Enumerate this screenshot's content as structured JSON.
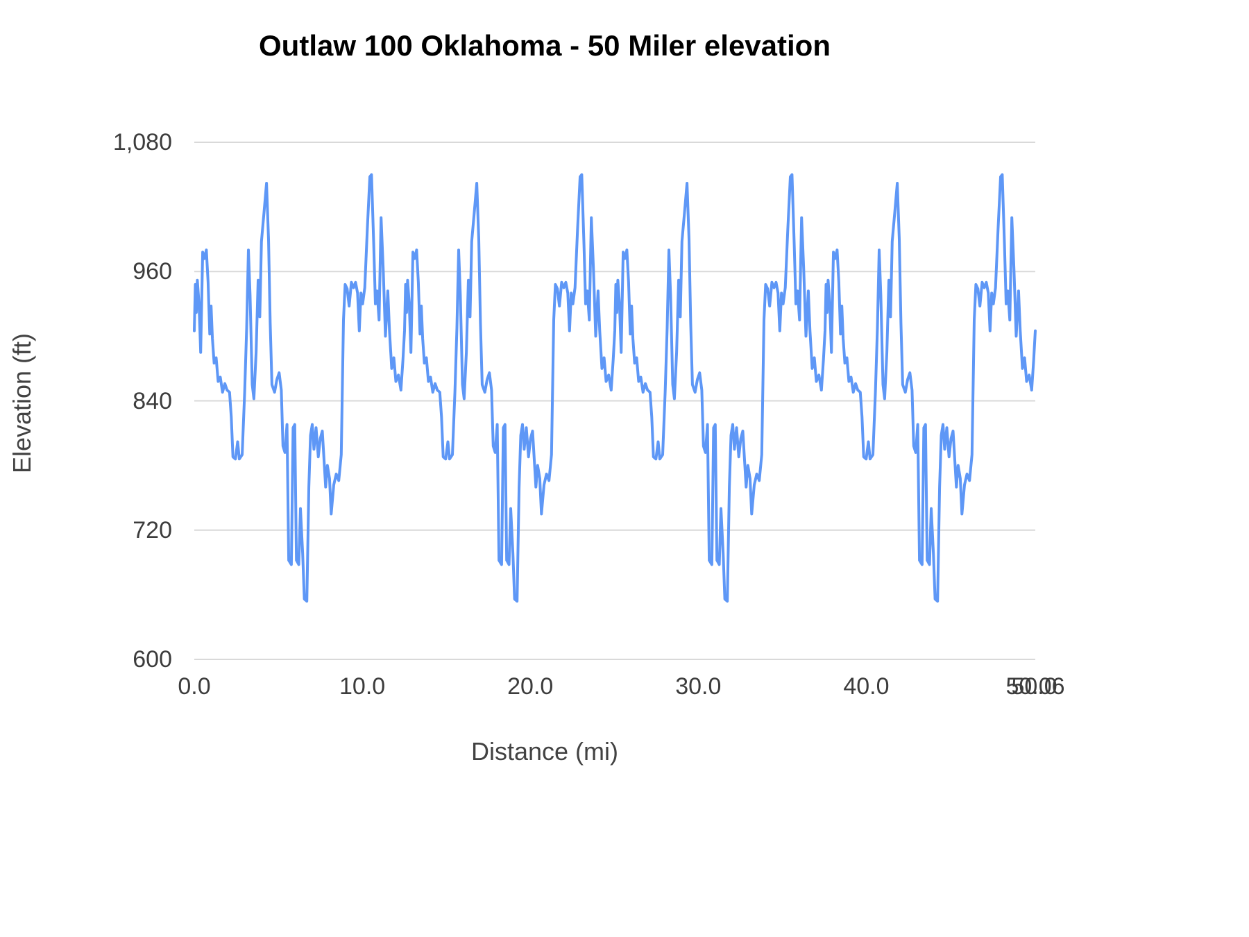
{
  "chart_data": {
    "type": "line",
    "title": "Outlaw 100 Oklahoma - 50 Miler elevation",
    "xlabel": "Distance (mi)",
    "ylabel": "Elevation (ft)",
    "xlim": [
      0,
      50.06
    ],
    "ylim": [
      600,
      1080
    ],
    "grid": "horizontal",
    "legend": "none",
    "series_color": "#5e97f6",
    "gridline_color": "#d9d9d9",
    "y_ticks": [
      {
        "label": "600",
        "value": 600
      },
      {
        "label": "720",
        "value": 720
      },
      {
        "label": "840",
        "value": 840
      },
      {
        "label": "960",
        "value": 960
      },
      {
        "label": "1,080",
        "value": 1080
      }
    ],
    "x_ticks": [
      {
        "label": "0.0",
        "value": 0
      },
      {
        "label": "10.0",
        "value": 10
      },
      {
        "label": "20.0",
        "value": 20
      },
      {
        "label": "30.0",
        "value": 30
      },
      {
        "label": "40.0",
        "value": 40
      },
      {
        "label": "50.0",
        "value": 50
      },
      {
        "label": "50.06",
        "value": 50.06
      }
    ],
    "laps": 4,
    "lap_length_mi": 12.515,
    "total_distance_mi": 50.06,
    "elevation_min_ft": 654,
    "elevation_max_ft": 1050,
    "lap_profile": [
      [
        0.0,
        905
      ],
      [
        0.06,
        948
      ],
      [
        0.12,
        922
      ],
      [
        0.18,
        952
      ],
      [
        0.28,
        930
      ],
      [
        0.38,
        885
      ],
      [
        0.5,
        978
      ],
      [
        0.6,
        972
      ],
      [
        0.72,
        980
      ],
      [
        0.82,
        950
      ],
      [
        0.92,
        902
      ],
      [
        1.0,
        928
      ],
      [
        1.08,
        898
      ],
      [
        1.18,
        875
      ],
      [
        1.3,
        880
      ],
      [
        1.42,
        858
      ],
      [
        1.55,
        862
      ],
      [
        1.68,
        848
      ],
      [
        1.82,
        856
      ],
      [
        1.95,
        850
      ],
      [
        2.1,
        848
      ],
      [
        2.2,
        825
      ],
      [
        2.3,
        788
      ],
      [
        2.45,
        786
      ],
      [
        2.58,
        802
      ],
      [
        2.68,
        786
      ],
      [
        2.85,
        790
      ],
      [
        3.0,
        848
      ],
      [
        3.12,
        908
      ],
      [
        3.22,
        980
      ],
      [
        3.32,
        938
      ],
      [
        3.45,
        855
      ],
      [
        3.55,
        842
      ],
      [
        3.68,
        885
      ],
      [
        3.8,
        952
      ],
      [
        3.9,
        918
      ],
      [
        4.0,
        988
      ],
      [
        4.15,
        1015
      ],
      [
        4.3,
        1042
      ],
      [
        4.42,
        990
      ],
      [
        4.52,
        912
      ],
      [
        4.62,
        855
      ],
      [
        4.78,
        848
      ],
      [
        4.92,
        860
      ],
      [
        5.05,
        866
      ],
      [
        5.18,
        850
      ],
      [
        5.28,
        798
      ],
      [
        5.4,
        792
      ],
      [
        5.52,
        818
      ],
      [
        5.62,
        692
      ],
      [
        5.78,
        688
      ],
      [
        5.88,
        815
      ],
      [
        5.98,
        818
      ],
      [
        6.08,
        692
      ],
      [
        6.22,
        688
      ],
      [
        6.32,
        740
      ],
      [
        6.45,
        698
      ],
      [
        6.55,
        656
      ],
      [
        6.7,
        654
      ],
      [
        6.82,
        760
      ],
      [
        6.92,
        808
      ],
      [
        7.02,
        818
      ],
      [
        7.12,
        795
      ],
      [
        7.25,
        815
      ],
      [
        7.38,
        788
      ],
      [
        7.5,
        805
      ],
      [
        7.62,
        812
      ],
      [
        7.72,
        786
      ],
      [
        7.82,
        760
      ],
      [
        7.92,
        780
      ],
      [
        8.05,
        768
      ],
      [
        8.15,
        735
      ],
      [
        8.3,
        762
      ],
      [
        8.45,
        772
      ],
      [
        8.6,
        766
      ],
      [
        8.75,
        790
      ],
      [
        8.88,
        915
      ],
      [
        8.98,
        948
      ],
      [
        9.1,
        944
      ],
      [
        9.22,
        928
      ],
      [
        9.35,
        950
      ],
      [
        9.48,
        945
      ],
      [
        9.6,
        950
      ],
      [
        9.72,
        940
      ],
      [
        9.82,
        905
      ],
      [
        9.92,
        940
      ],
      [
        10.02,
        930
      ],
      [
        10.15,
        945
      ],
      [
        10.3,
        1000
      ],
      [
        10.45,
        1048
      ],
      [
        10.55,
        1050
      ],
      [
        10.68,
        985
      ],
      [
        10.78,
        930
      ],
      [
        10.88,
        942
      ],
      [
        11.0,
        915
      ],
      [
        11.12,
        1010
      ],
      [
        11.25,
        960
      ],
      [
        11.38,
        900
      ],
      [
        11.52,
        942
      ],
      [
        11.62,
        905
      ],
      [
        11.75,
        870
      ],
      [
        11.88,
        880
      ],
      [
        12.0,
        858
      ],
      [
        12.15,
        864
      ],
      [
        12.3,
        850
      ],
      [
        12.42,
        878
      ],
      [
        12.515,
        905
      ]
    ]
  }
}
